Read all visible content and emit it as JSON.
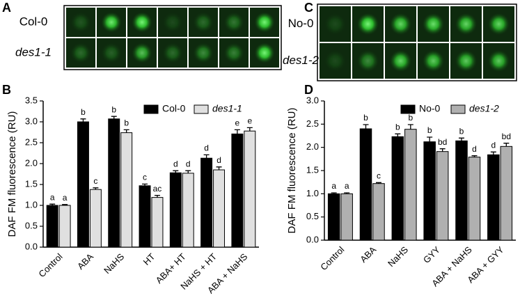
{
  "panel_labels": [
    "A",
    "B",
    "C",
    "D"
  ],
  "micrographs": [
    {
      "rows": [
        "Col-0",
        "des1-1"
      ]
    },
    {
      "rows": [
        "No-0",
        "des1-2"
      ]
    }
  ],
  "chart_data": [
    {
      "type": "bar",
      "ylabel": "DAF FM fluorescence (RU)",
      "categories": [
        "Control",
        "ABA",
        "NaHS",
        "HT",
        "ABA+ HT",
        "NaHS + HT",
        "ABA + NaHS"
      ],
      "series": [
        {
          "name": "Col-0",
          "color": "#000000",
          "values": [
            1.0,
            3.0,
            3.07,
            1.47,
            1.78,
            2.13,
            2.71
          ],
          "errors": [
            0.03,
            0.07,
            0.06,
            0.04,
            0.05,
            0.08,
            0.1
          ],
          "letters": [
            "a",
            "b",
            "b",
            "c",
            "d",
            "d",
            "e"
          ]
        },
        {
          "name": "des1-1",
          "color": "#e0e0e0",
          "values": [
            1.0,
            1.38,
            2.74,
            1.19,
            1.77,
            1.85,
            2.78
          ],
          "errors": [
            0.02,
            0.04,
            0.07,
            0.05,
            0.06,
            0.07,
            0.08
          ],
          "letters": [
            "a",
            "c",
            "b",
            "ac",
            "d",
            "d",
            "e"
          ]
        }
      ],
      "ylim": [
        0,
        3.5
      ],
      "yticks": [
        {
          "value": 0,
          "label": "0.0"
        },
        0.5,
        {
          "value": 1,
          "label": "1.0"
        },
        1.5,
        {
          "value": 2,
          "label": "2.0"
        },
        2.5,
        {
          "value": 3,
          "label": "3.0"
        },
        3.5
      ],
      "legend": "upper right"
    },
    {
      "type": "bar",
      "ylabel": "DAF FM fluorescence (RU)",
      "categories": [
        "Control",
        "ABA",
        "NaHS",
        "GYY",
        "ABA + NaHS",
        "ABA + GYY"
      ],
      "series": [
        {
          "name": "No-0",
          "color": "#000000",
          "values": [
            1.0,
            2.4,
            2.23,
            2.12,
            2.14,
            1.84
          ],
          "errors": [
            0.02,
            0.09,
            0.06,
            0.1,
            0.06,
            0.06
          ],
          "letters": [
            "a",
            "b",
            "b",
            "b",
            "b",
            "d"
          ]
        },
        {
          "name": "des1-2",
          "color": "#b0b0b0",
          "values": [
            1.0,
            1.22,
            2.39,
            1.91,
            1.79,
            2.02
          ],
          "errors": [
            0.02,
            0.02,
            0.1,
            0.06,
            0.03,
            0.07
          ],
          "letters": [
            "a",
            "c",
            "b",
            "bd",
            "d",
            "bd"
          ]
        }
      ],
      "ylim": [
        0,
        3.0
      ],
      "yticks": [
        {
          "value": 0,
          "label": "0.0"
        },
        0.5,
        {
          "value": 1,
          "label": "1.0"
        },
        1.5,
        {
          "value": 2,
          "label": "2.0"
        },
        2.5,
        {
          "value": 3,
          "label": "3.0"
        }
      ],
      "legend": "upper right"
    }
  ]
}
